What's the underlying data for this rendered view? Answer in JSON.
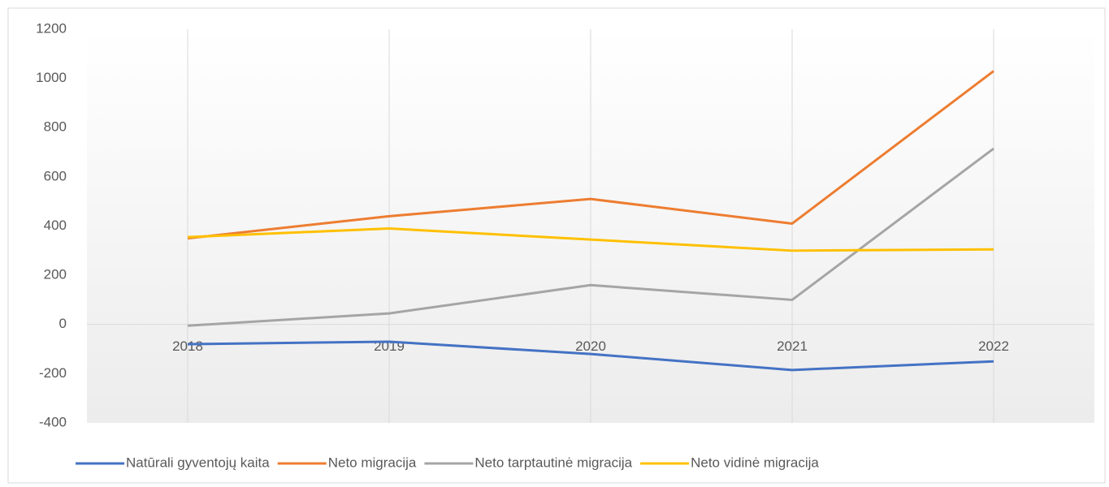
{
  "chart_data": {
    "type": "line",
    "categories": [
      "2018",
      "2019",
      "2020",
      "2021",
      "2022"
    ],
    "series": [
      {
        "name": "Natūrali gyventojų kaita",
        "color": "#4472c4",
        "values": [
          -80,
          -70,
          -120,
          -185,
          -150
        ]
      },
      {
        "name": "Neto migracija",
        "color": "#ed7d31",
        "values": [
          350,
          440,
          510,
          410,
          1030
        ]
      },
      {
        "name": "Neto tarptautinė migracija",
        "color": "#a5a5a5",
        "values": [
          -5,
          45,
          160,
          100,
          715
        ]
      },
      {
        "name": "Neto vidinė migracija",
        "color": "#ffc000",
        "values": [
          355,
          390,
          345,
          300,
          305
        ]
      }
    ],
    "ylim": [
      -400,
      1200
    ],
    "yticks": [
      -400,
      -200,
      0,
      200,
      400,
      600,
      800,
      1000,
      1200
    ],
    "vertical_grid": true,
    "legend": "bottom"
  }
}
